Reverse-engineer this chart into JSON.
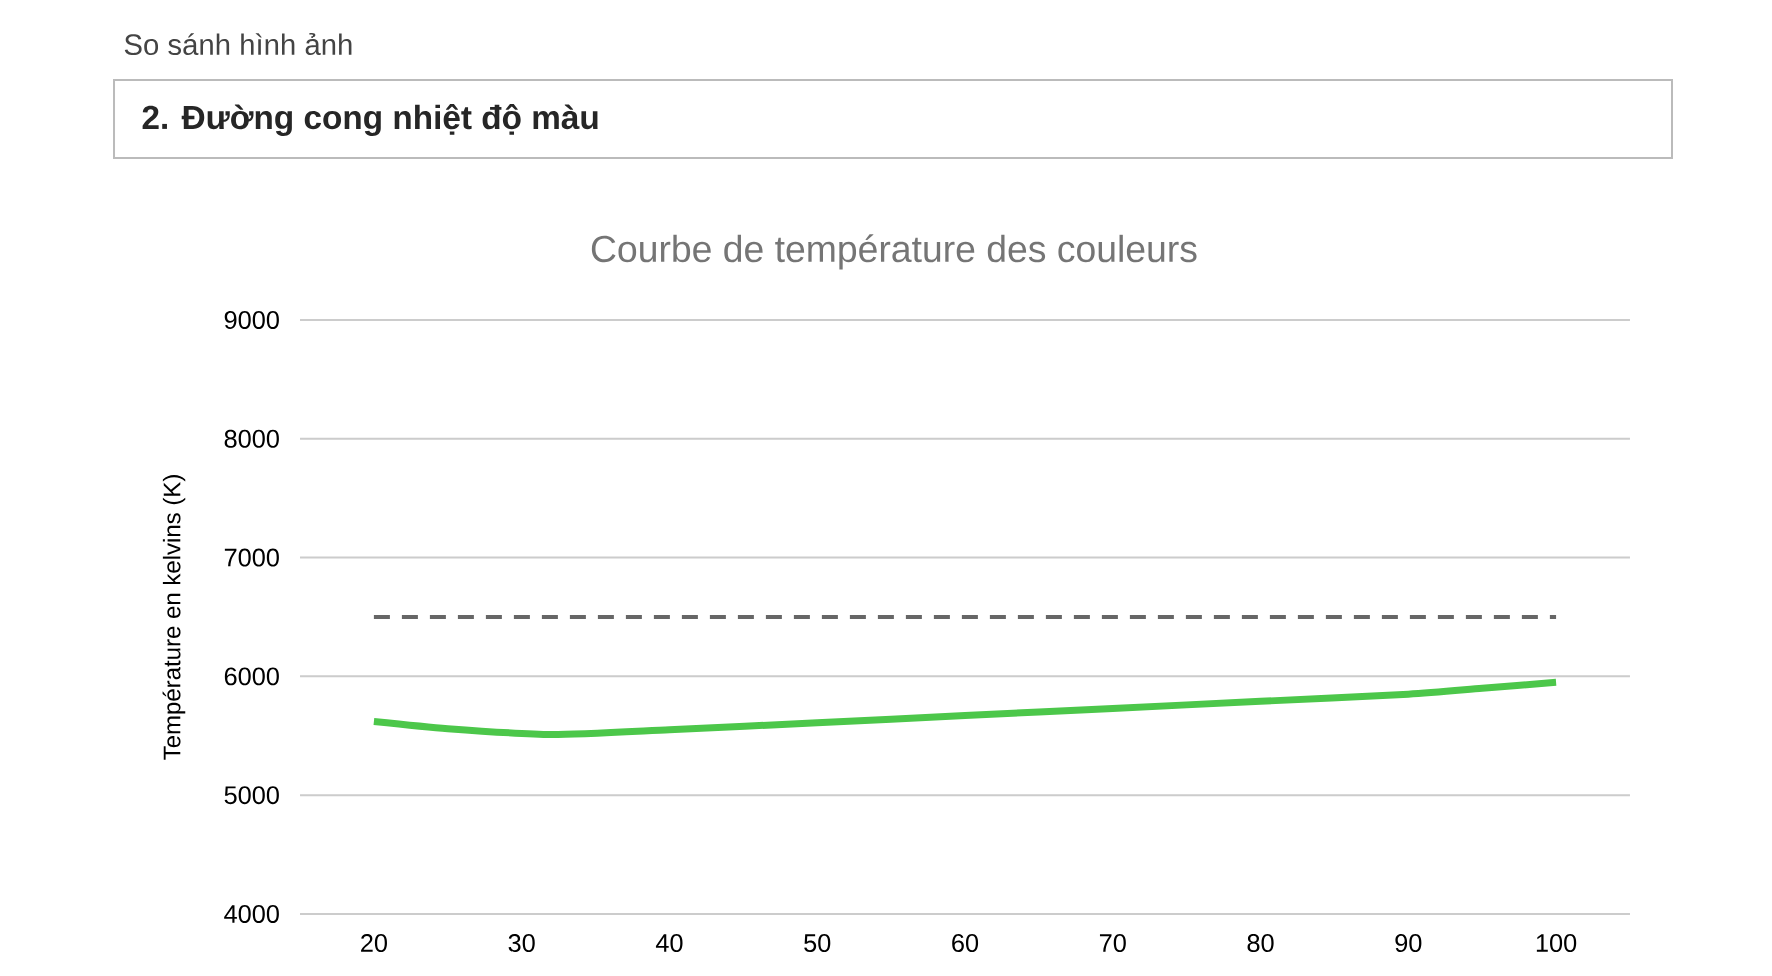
{
  "chart_data": {
    "type": "line",
    "title": "Courbe de température des couleurs",
    "ylabel": "Température en kelvins (K)",
    "annotations": [
      "So sánh hình ảnh",
      "2. Đường cong nhiệt độ màu"
    ],
    "x": [
      20,
      25,
      32,
      40,
      50,
      60,
      70,
      80,
      90,
      95,
      100
    ],
    "series": [
      {
        "color": "#4cc74a",
        "values": [
          5620,
          5560,
          5510,
          5550,
          5610,
          5670,
          5730,
          5790,
          5850,
          5900,
          5950
        ]
      }
    ],
    "xlim": [
      15,
      105
    ],
    "ylim": [
      4000,
      9000
    ],
    "xticks": [
      20,
      30,
      40,
      50,
      60,
      70,
      80,
      90,
      100
    ],
    "yticks": [
      4000,
      5000,
      6000,
      7000,
      8000,
      9000
    ],
    "grid": "y",
    "ref_lines": [
      {
        "axis": "y",
        "value": 6500,
        "color": "#666666",
        "line_style": "dashed"
      }
    ]
  }
}
